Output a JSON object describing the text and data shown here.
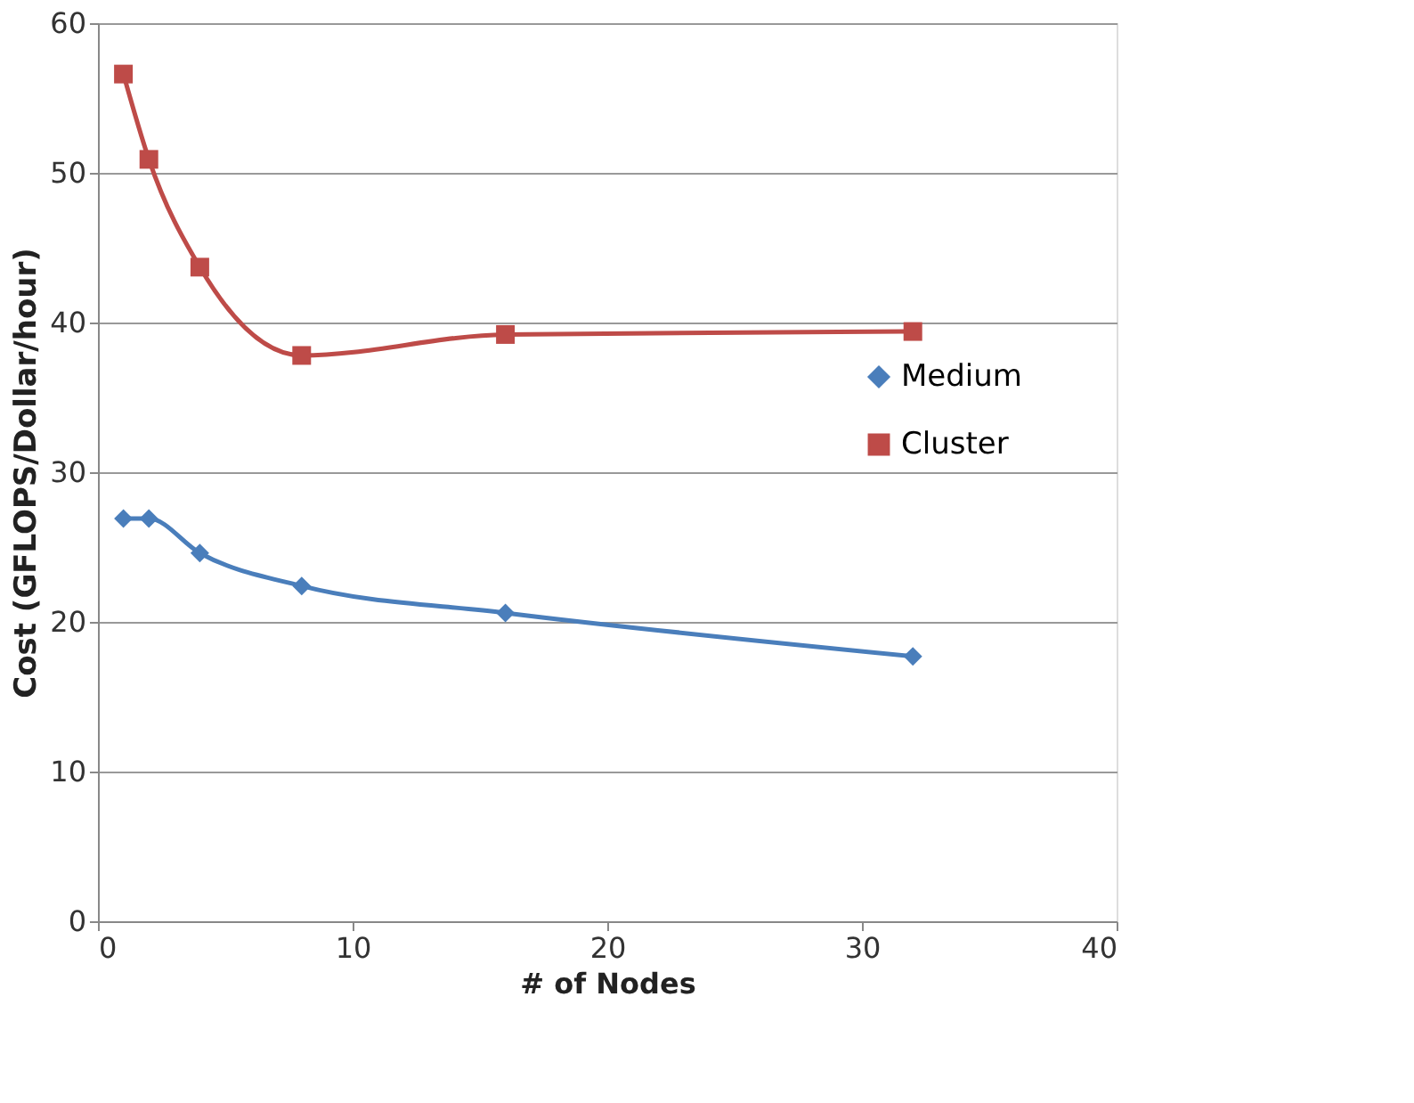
{
  "chart_data": {
    "type": "line",
    "xlabel": "# of Nodes",
    "ylabel": "Cost (GFLOPS/Dollar/hour)",
    "xlim": [
      0,
      40
    ],
    "xticks": [
      0,
      10,
      20,
      30,
      40
    ],
    "ylim": [
      0,
      60
    ],
    "yticks": [
      0,
      10,
      20,
      30,
      40,
      50,
      60
    ],
    "grid": "y",
    "legend": "right",
    "line_style": "solid",
    "series": [
      {
        "name": "Medium",
        "color": "#4a7ebb",
        "marker": "diamond",
        "x": [
          1,
          2,
          4,
          8,
          16,
          32
        ],
        "values": [
          26.9,
          26.9,
          24.6,
          22.4,
          20.6,
          17.7
        ]
      },
      {
        "name": "Cluster",
        "color": "#be4b48",
        "marker": "square",
        "x": [
          1,
          2,
          4,
          8,
          16,
          32
        ],
        "values": [
          56.6,
          50.9,
          43.7,
          37.8,
          39.2,
          39.4
        ]
      }
    ]
  }
}
